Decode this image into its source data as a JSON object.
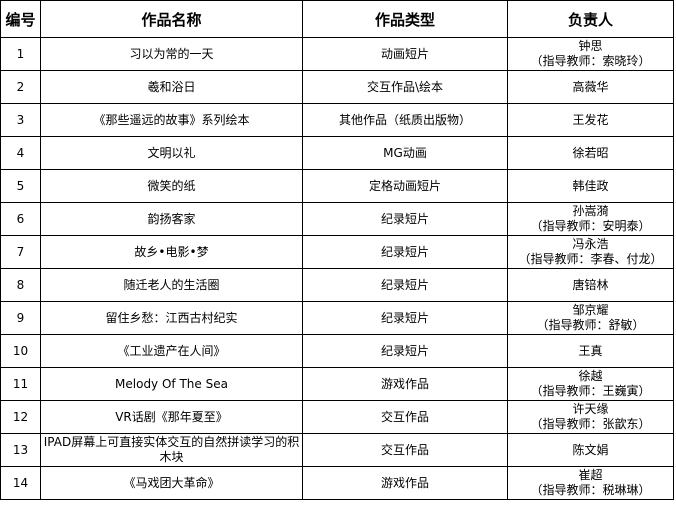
{
  "table": {
    "header": [
      "编号",
      "作品名称",
      "作品类型",
      "负责人"
    ],
    "rows": [
      {
        "no": "1",
        "title": "习以为常的一天",
        "type": "动画短片",
        "person": [
          "钟思",
          "（指导教师：索晓玲）"
        ]
      },
      {
        "no": "2",
        "title": "羲和浴日",
        "type": "交互作品\\绘本",
        "person": [
          "高薇华"
        ]
      },
      {
        "no": "3",
        "title": "《那些遥远的故事》系列绘本",
        "type": "其他作品（纸质出版物）",
        "person": [
          "王发花"
        ]
      },
      {
        "no": "4",
        "title": "文明以礼",
        "type": "MG动画",
        "person": [
          "徐若昭"
        ]
      },
      {
        "no": "5",
        "title": "微笑的纸",
        "type": "定格动画短片",
        "person": [
          "韩佳政"
        ]
      },
      {
        "no": "6",
        "title": "韵扬客家",
        "type": "纪录短片",
        "person": [
          "孙嵩漪",
          "（指导教师：安明泰）"
        ]
      },
      {
        "no": "7",
        "title": "故乡•电影•梦",
        "type": "纪录短片",
        "person": [
          "冯永浩",
          "（指导教师：李春、付龙）"
        ]
      },
      {
        "no": "8",
        "title": "随迁老人的生活圈",
        "type": "纪录短片",
        "person": [
          "唐锫林"
        ]
      },
      {
        "no": "9",
        "title": "留住乡愁：江西古村纪实",
        "type": "纪录短片",
        "person": [
          "邹京耀",
          "（指导教师：舒敏）"
        ]
      },
      {
        "no": "10",
        "title": "《工业遗产在人间》",
        "type": "纪录短片",
        "person": [
          "王真"
        ]
      },
      {
        "no": "11",
        "title": "Melody Of The Sea",
        "type": "游戏作品",
        "person": [
          "徐越",
          "（指导教师：王巍寅）"
        ]
      },
      {
        "no": "12",
        "title": "VR话剧《那年夏至》",
        "type": "交互作品",
        "person": [
          "许天缘",
          "（指导教师：张歆东）"
        ]
      },
      {
        "no": "13",
        "title": "IPAD屏幕上可直接实体交互的自然拼读学习的积木块",
        "type": "交互作品",
        "person": [
          "陈文娟"
        ]
      },
      {
        "no": "14",
        "title": "《马戏团大革命》",
        "type": "游戏作品",
        "person": [
          "崔超",
          "（指导教师：税琳琳）"
        ]
      }
    ]
  }
}
